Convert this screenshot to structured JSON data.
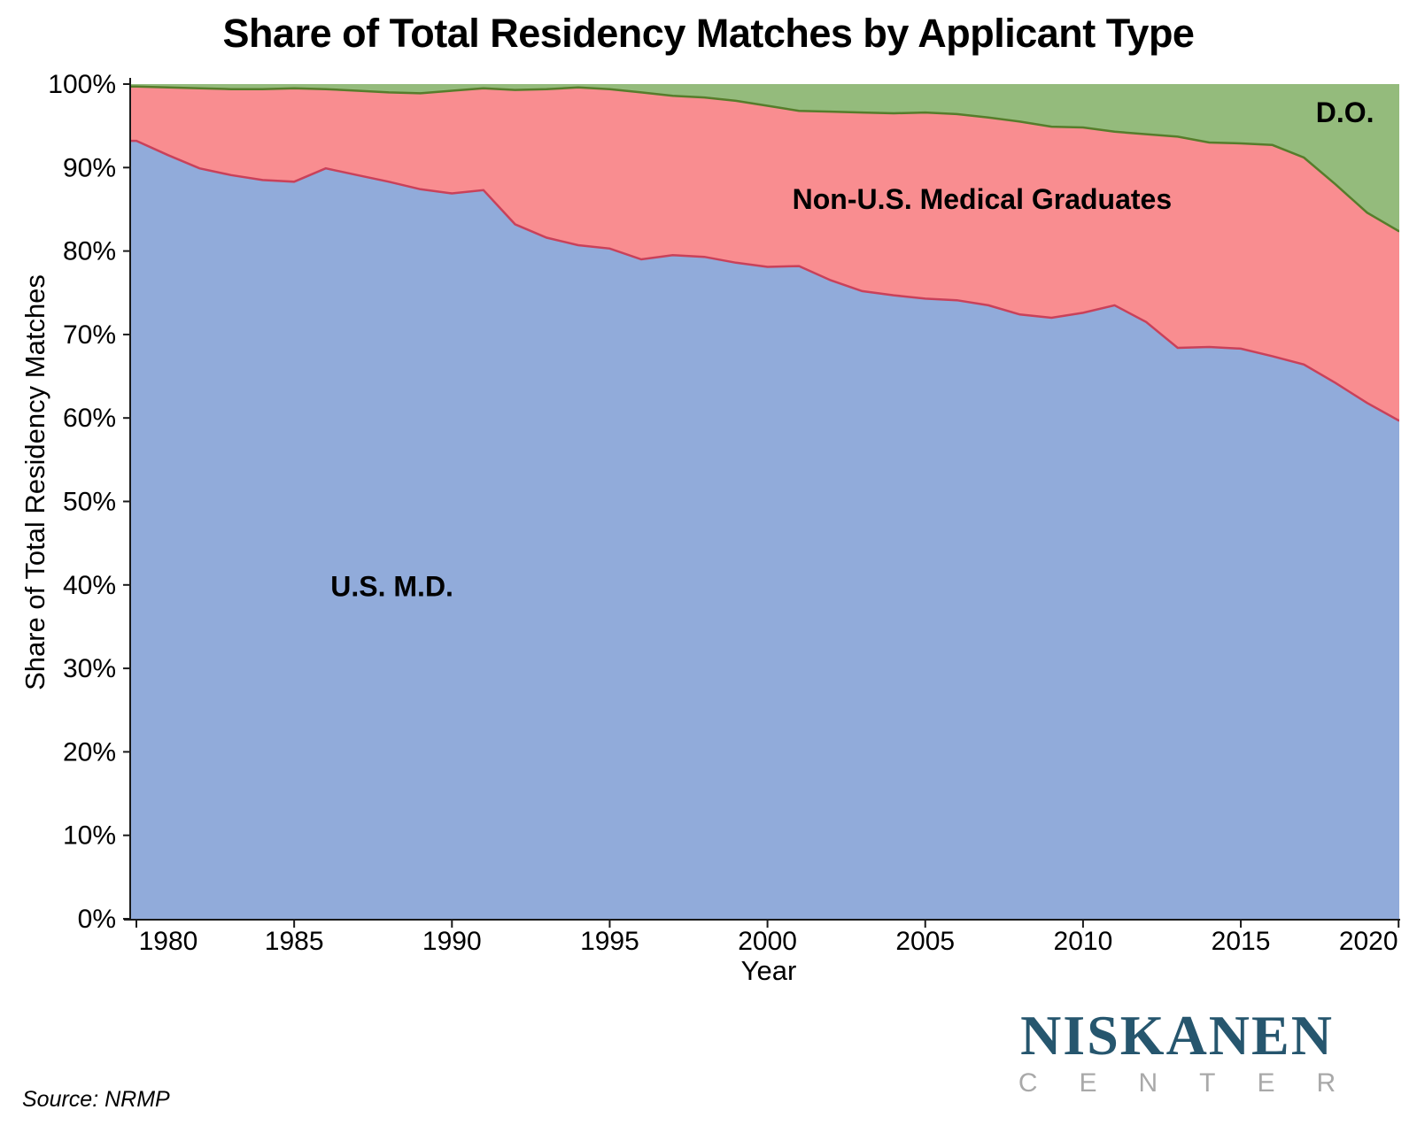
{
  "title": "Share of Total Residency Matches by Applicant Type",
  "source": "Source: NRMP",
  "logo": {
    "line1": "NISKANEN",
    "line2": "CENTER"
  },
  "brand": {
    "niskanen_teal": "#26566E",
    "center_gray": "#A9A9A9"
  },
  "chart_data": {
    "type": "area",
    "stacked": true,
    "title": "Share of Total Residency Matches by Applicant Type",
    "xlabel": "Year",
    "ylabel": "Share of Total Residency Matches",
    "grid": false,
    "legend": "in-plot labels",
    "xlim": [
      1980,
      2020
    ],
    "ylim": [
      0,
      100
    ],
    "x": [
      1980,
      1981,
      1982,
      1983,
      1984,
      1985,
      1986,
      1987,
      1988,
      1989,
      1990,
      1991,
      1992,
      1993,
      1994,
      1995,
      1996,
      1997,
      1998,
      1999,
      2000,
      2001,
      2002,
      2003,
      2004,
      2005,
      2006,
      2007,
      2008,
      2009,
      2010,
      2011,
      2012,
      2013,
      2014,
      2015,
      2016,
      2017,
      2018,
      2019,
      2020
    ],
    "series": [
      {
        "name": "U.S. M.D.",
        "fill": "#91ABDA",
        "edge": "#C9415A",
        "values": [
          93.2,
          91.5,
          89.9,
          89.1,
          88.5,
          88.3,
          89.9,
          89.1,
          88.3,
          87.4,
          86.9,
          87.3,
          83.2,
          81.6,
          80.7,
          80.3,
          79.0,
          79.5,
          79.3,
          78.6,
          78.1,
          78.2,
          76.5,
          75.2,
          74.7,
          74.3,
          74.1,
          73.5,
          72.4,
          72.0,
          72.6,
          73.5,
          71.5,
          68.4,
          68.5,
          68.3,
          67.4,
          66.4,
          64.2,
          61.8,
          59.7
        ]
      },
      {
        "name": "Non-U.S. Medical Graduates",
        "fill": "#F98D90",
        "edge": "#567D2B",
        "values": [
          6.5,
          8.1,
          9.6,
          10.3,
          10.9,
          11.2,
          9.5,
          10.1,
          10.7,
          11.5,
          12.3,
          12.2,
          16.1,
          17.8,
          18.9,
          19.1,
          20.0,
          19.1,
          19.1,
          19.4,
          19.3,
          18.6,
          20.2,
          21.4,
          21.8,
          22.3,
          22.3,
          22.5,
          23.1,
          22.9,
          22.2,
          20.8,
          22.5,
          25.3,
          24.5,
          24.6,
          25.3,
          24.8,
          23.8,
          22.8,
          22.7
        ]
      },
      {
        "name": "D.O.",
        "fill": "#94BB7C",
        "edge": null,
        "values": [
          0.3,
          0.4,
          0.5,
          0.6,
          0.6,
          0.5,
          0.6,
          0.8,
          1.0,
          1.1,
          0.8,
          0.5,
          0.7,
          0.6,
          0.4,
          0.6,
          1.0,
          1.4,
          1.6,
          2.0,
          2.6,
          3.2,
          3.3,
          3.4,
          3.5,
          3.4,
          3.6,
          4.0,
          4.5,
          5.1,
          5.2,
          5.7,
          6.0,
          6.3,
          7.0,
          7.1,
          7.3,
          8.8,
          12.0,
          15.4,
          17.6
        ]
      }
    ],
    "x_ticks": [
      {
        "v": 1980,
        "label": "1980"
      },
      {
        "v": 1985,
        "label": "1985"
      },
      {
        "v": 1990,
        "label": "1990"
      },
      {
        "v": 1995,
        "label": "1995"
      },
      {
        "v": 2000,
        "label": "2000"
      },
      {
        "v": 2005,
        "label": "2005"
      },
      {
        "v": 2010,
        "label": "2010"
      },
      {
        "v": 2015,
        "label": "2015"
      },
      {
        "v": 2020,
        "label": "2020"
      }
    ],
    "y_ticks": [
      {
        "v": 0,
        "label": "0%"
      },
      {
        "v": 10,
        "label": "10%"
      },
      {
        "v": 20,
        "label": "20%"
      },
      {
        "v": 30,
        "label": "30%"
      },
      {
        "v": 40,
        "label": "40%"
      },
      {
        "v": 50,
        "label": "50%"
      },
      {
        "v": 60,
        "label": "60%"
      },
      {
        "v": 70,
        "label": "70%"
      },
      {
        "v": 80,
        "label": "80%"
      },
      {
        "v": 90,
        "label": "90%"
      },
      {
        "v": 100,
        "label": "100%"
      }
    ],
    "annotations": [
      {
        "text": "U.S. M.D.",
        "x": 1988.1,
        "y": 39.8
      },
      {
        "text": "Non-U.S. Medical Graduates",
        "x": 2006.8,
        "y": 86.2
      },
      {
        "text": "D.O.",
        "x": 2018.3,
        "y": 96.6
      }
    ]
  }
}
